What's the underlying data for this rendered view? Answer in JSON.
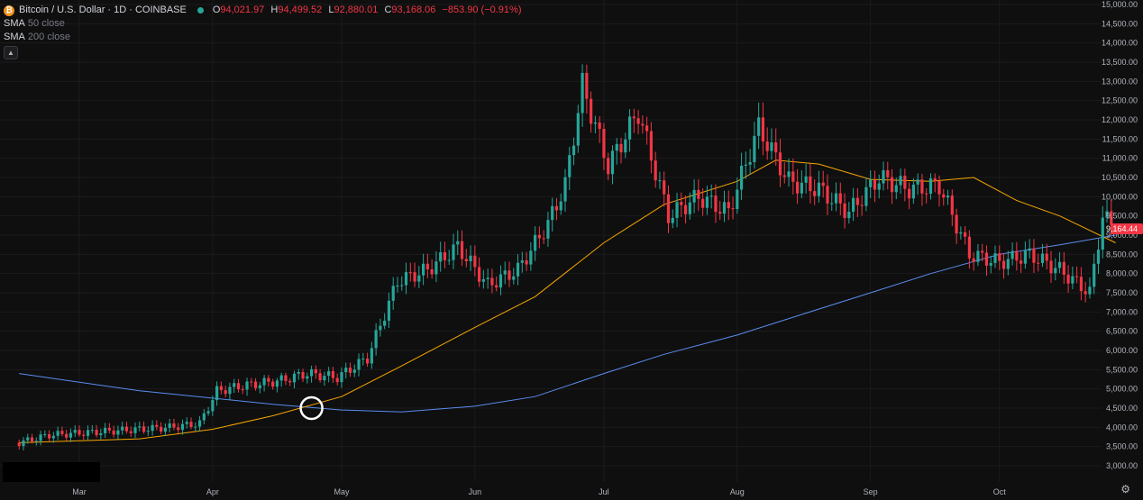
{
  "header": {
    "symbol_title": "Bitcoin / U.S. Dollar · 1D · COINBASE",
    "coin_glyph": "₿",
    "ohlc": [
      {
        "key": "O",
        "value": "94,021.97"
      },
      {
        "key": "H",
        "value": "94,499.52"
      },
      {
        "key": "L",
        "value": "92,880.01"
      },
      {
        "key": "C",
        "value": "93,168.06"
      }
    ],
    "change": "−853.90 (−0.91%)",
    "status_color": "#26a69a"
  },
  "indicators": [
    {
      "name": "SMA",
      "detail": "50 close",
      "color": "#f7a600"
    },
    {
      "name": "SMA",
      "detail": "200 close",
      "color": "#5b8cf0"
    }
  ],
  "colors": {
    "up": "#26a69a",
    "down": "#f23645",
    "background": "#0f0f0f",
    "grid": "#1b1b1b"
  },
  "chart_data": {
    "type": "candlestick",
    "x_tick_labels": [
      "Mar",
      "Apr",
      "May",
      "Jun",
      "Jul",
      "Aug",
      "Sep",
      "Oct"
    ],
    "y_tick_labels": [
      "3,000.00",
      "3,500.00",
      "4,000.00",
      "4,500.00",
      "5,000.00",
      "5,500.00",
      "6,000.00",
      "6,500.00",
      "7,000.00",
      "7,500.00",
      "8,000.00",
      "8,500.00",
      "9,000.00",
      "9,500.00",
      "10,000.00",
      "10,500.00",
      "11,000.00",
      "11,500.00",
      "12,000.00",
      "12,500.00",
      "13,000.00",
      "13,500.00",
      "14,000.00",
      "14,500.00",
      "15,000.00"
    ],
    "ylim": [
      2500,
      15000
    ],
    "grid": true,
    "last_price_label": "9,164.44",
    "series_close": [
      {
        "date": "Feb 15",
        "close": 3600
      },
      {
        "date": "Feb 22",
        "close": 3800
      },
      {
        "date": "Mar 1",
        "close": 3850
      },
      {
        "date": "Mar 8",
        "close": 3900
      },
      {
        "date": "Mar 15",
        "close": 3950
      },
      {
        "date": "Mar 22",
        "close": 4000
      },
      {
        "date": "Mar 29",
        "close": 4100
      },
      {
        "date": "Apr 2",
        "close": 4950
      },
      {
        "date": "Apr 9",
        "close": 5100
      },
      {
        "date": "Apr 16",
        "close": 5200
      },
      {
        "date": "Apr 23",
        "close": 5400
      },
      {
        "date": "Apr 30",
        "close": 5300
      },
      {
        "date": "May 7",
        "close": 5800
      },
      {
        "date": "May 14",
        "close": 7800
      },
      {
        "date": "May 21",
        "close": 8100
      },
      {
        "date": "May 28",
        "close": 8700
      },
      {
        "date": "Jun 4",
        "close": 7700
      },
      {
        "date": "Jun 11",
        "close": 8100
      },
      {
        "date": "Jun 18",
        "close": 9300
      },
      {
        "date": "Jun 22",
        "close": 10300
      },
      {
        "date": "Jun 26",
        "close": 12900
      },
      {
        "date": "Jul 2",
        "close": 10800
      },
      {
        "date": "Jul 9",
        "close": 12200
      },
      {
        "date": "Jul 16",
        "close": 9500
      },
      {
        "date": "Jul 23",
        "close": 10000
      },
      {
        "date": "Jul 30",
        "close": 9600
      },
      {
        "date": "Aug 6",
        "close": 11800
      },
      {
        "date": "Aug 13",
        "close": 10400
      },
      {
        "date": "Aug 20",
        "close": 10200
      },
      {
        "date": "Aug 27",
        "close": 9600
      },
      {
        "date": "Sep 3",
        "close": 10500
      },
      {
        "date": "Sep 10",
        "close": 10200
      },
      {
        "date": "Sep 17",
        "close": 10300
      },
      {
        "date": "Sep 24",
        "close": 8500
      },
      {
        "date": "Oct 1",
        "close": 8300
      },
      {
        "date": "Oct 8",
        "close": 8500
      },
      {
        "date": "Oct 15",
        "close": 8100
      },
      {
        "date": "Oct 22",
        "close": 7500
      },
      {
        "date": "Oct 25",
        "close": 9500
      },
      {
        "date": "Oct 28",
        "close": 9164
      }
    ],
    "sma50": [
      {
        "date": "Feb 15",
        "value": 3600
      },
      {
        "date": "Mar 15",
        "value": 3700
      },
      {
        "date": "Apr 1",
        "value": 3950
      },
      {
        "date": "Apr 15",
        "value": 4300
      },
      {
        "date": "May 1",
        "value": 4800
      },
      {
        "date": "May 15",
        "value": 5600
      },
      {
        "date": "Jun 1",
        "value": 6600
      },
      {
        "date": "Jun 15",
        "value": 7400
      },
      {
        "date": "Jul 1",
        "value": 8800
      },
      {
        "date": "Jul 15",
        "value": 9800
      },
      {
        "date": "Aug 1",
        "value": 10400
      },
      {
        "date": "Aug 10",
        "value": 10950
      },
      {
        "date": "Aug 20",
        "value": 10850
      },
      {
        "date": "Sep 1",
        "value": 10450
      },
      {
        "date": "Sep 15",
        "value": 10400
      },
      {
        "date": "Sep 25",
        "value": 10500
      },
      {
        "date": "Oct 5",
        "value": 9900
      },
      {
        "date": "Oct 15",
        "value": 9500
      },
      {
        "date": "Oct 28",
        "value": 8800
      }
    ],
    "sma200": [
      {
        "date": "Feb 15",
        "value": 5400
      },
      {
        "date": "Mar 15",
        "value": 4950
      },
      {
        "date": "Apr 15",
        "value": 4600
      },
      {
        "date": "May 1",
        "value": 4450
      },
      {
        "date": "May 15",
        "value": 4400
      },
      {
        "date": "Jun 1",
        "value": 4550
      },
      {
        "date": "Jun 15",
        "value": 4800
      },
      {
        "date": "Jul 1",
        "value": 5400
      },
      {
        "date": "Jul 15",
        "value": 5900
      },
      {
        "date": "Aug 1",
        "value": 6400
      },
      {
        "date": "Aug 15",
        "value": 6900
      },
      {
        "date": "Sep 1",
        "value": 7500
      },
      {
        "date": "Sep 15",
        "value": 8000
      },
      {
        "date": "Oct 1",
        "value": 8500
      },
      {
        "date": "Oct 15",
        "value": 8750
      },
      {
        "date": "Oct 28",
        "value": 9000
      }
    ],
    "annotation": {
      "type": "circle",
      "date": "Apr 24",
      "price": 4500
    }
  }
}
